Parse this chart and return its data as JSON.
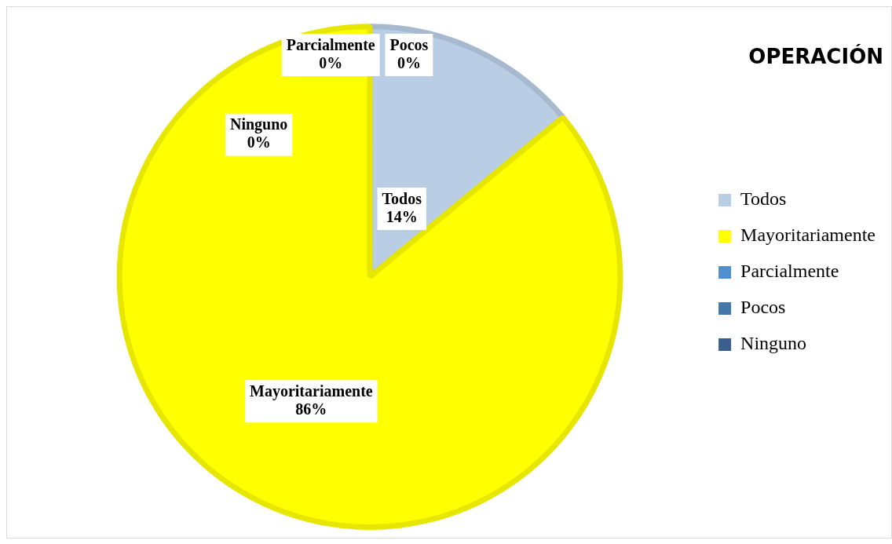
{
  "chart_data": {
    "type": "pie",
    "title": "OPERACIÓN",
    "categories": [
      "Todos",
      "Mayoritariamente",
      "Parcialmente",
      "Pocos",
      "Ninguno"
    ],
    "values": [
      14,
      86,
      0,
      0,
      0
    ],
    "colors": [
      "#b9cde5",
      "#ffff00",
      "#4f8fcf",
      "#4477aa",
      "#3a5f8f"
    ],
    "value_labels": [
      "14%",
      "86%",
      "0%",
      "0%",
      "0%"
    ],
    "legend": "right"
  }
}
